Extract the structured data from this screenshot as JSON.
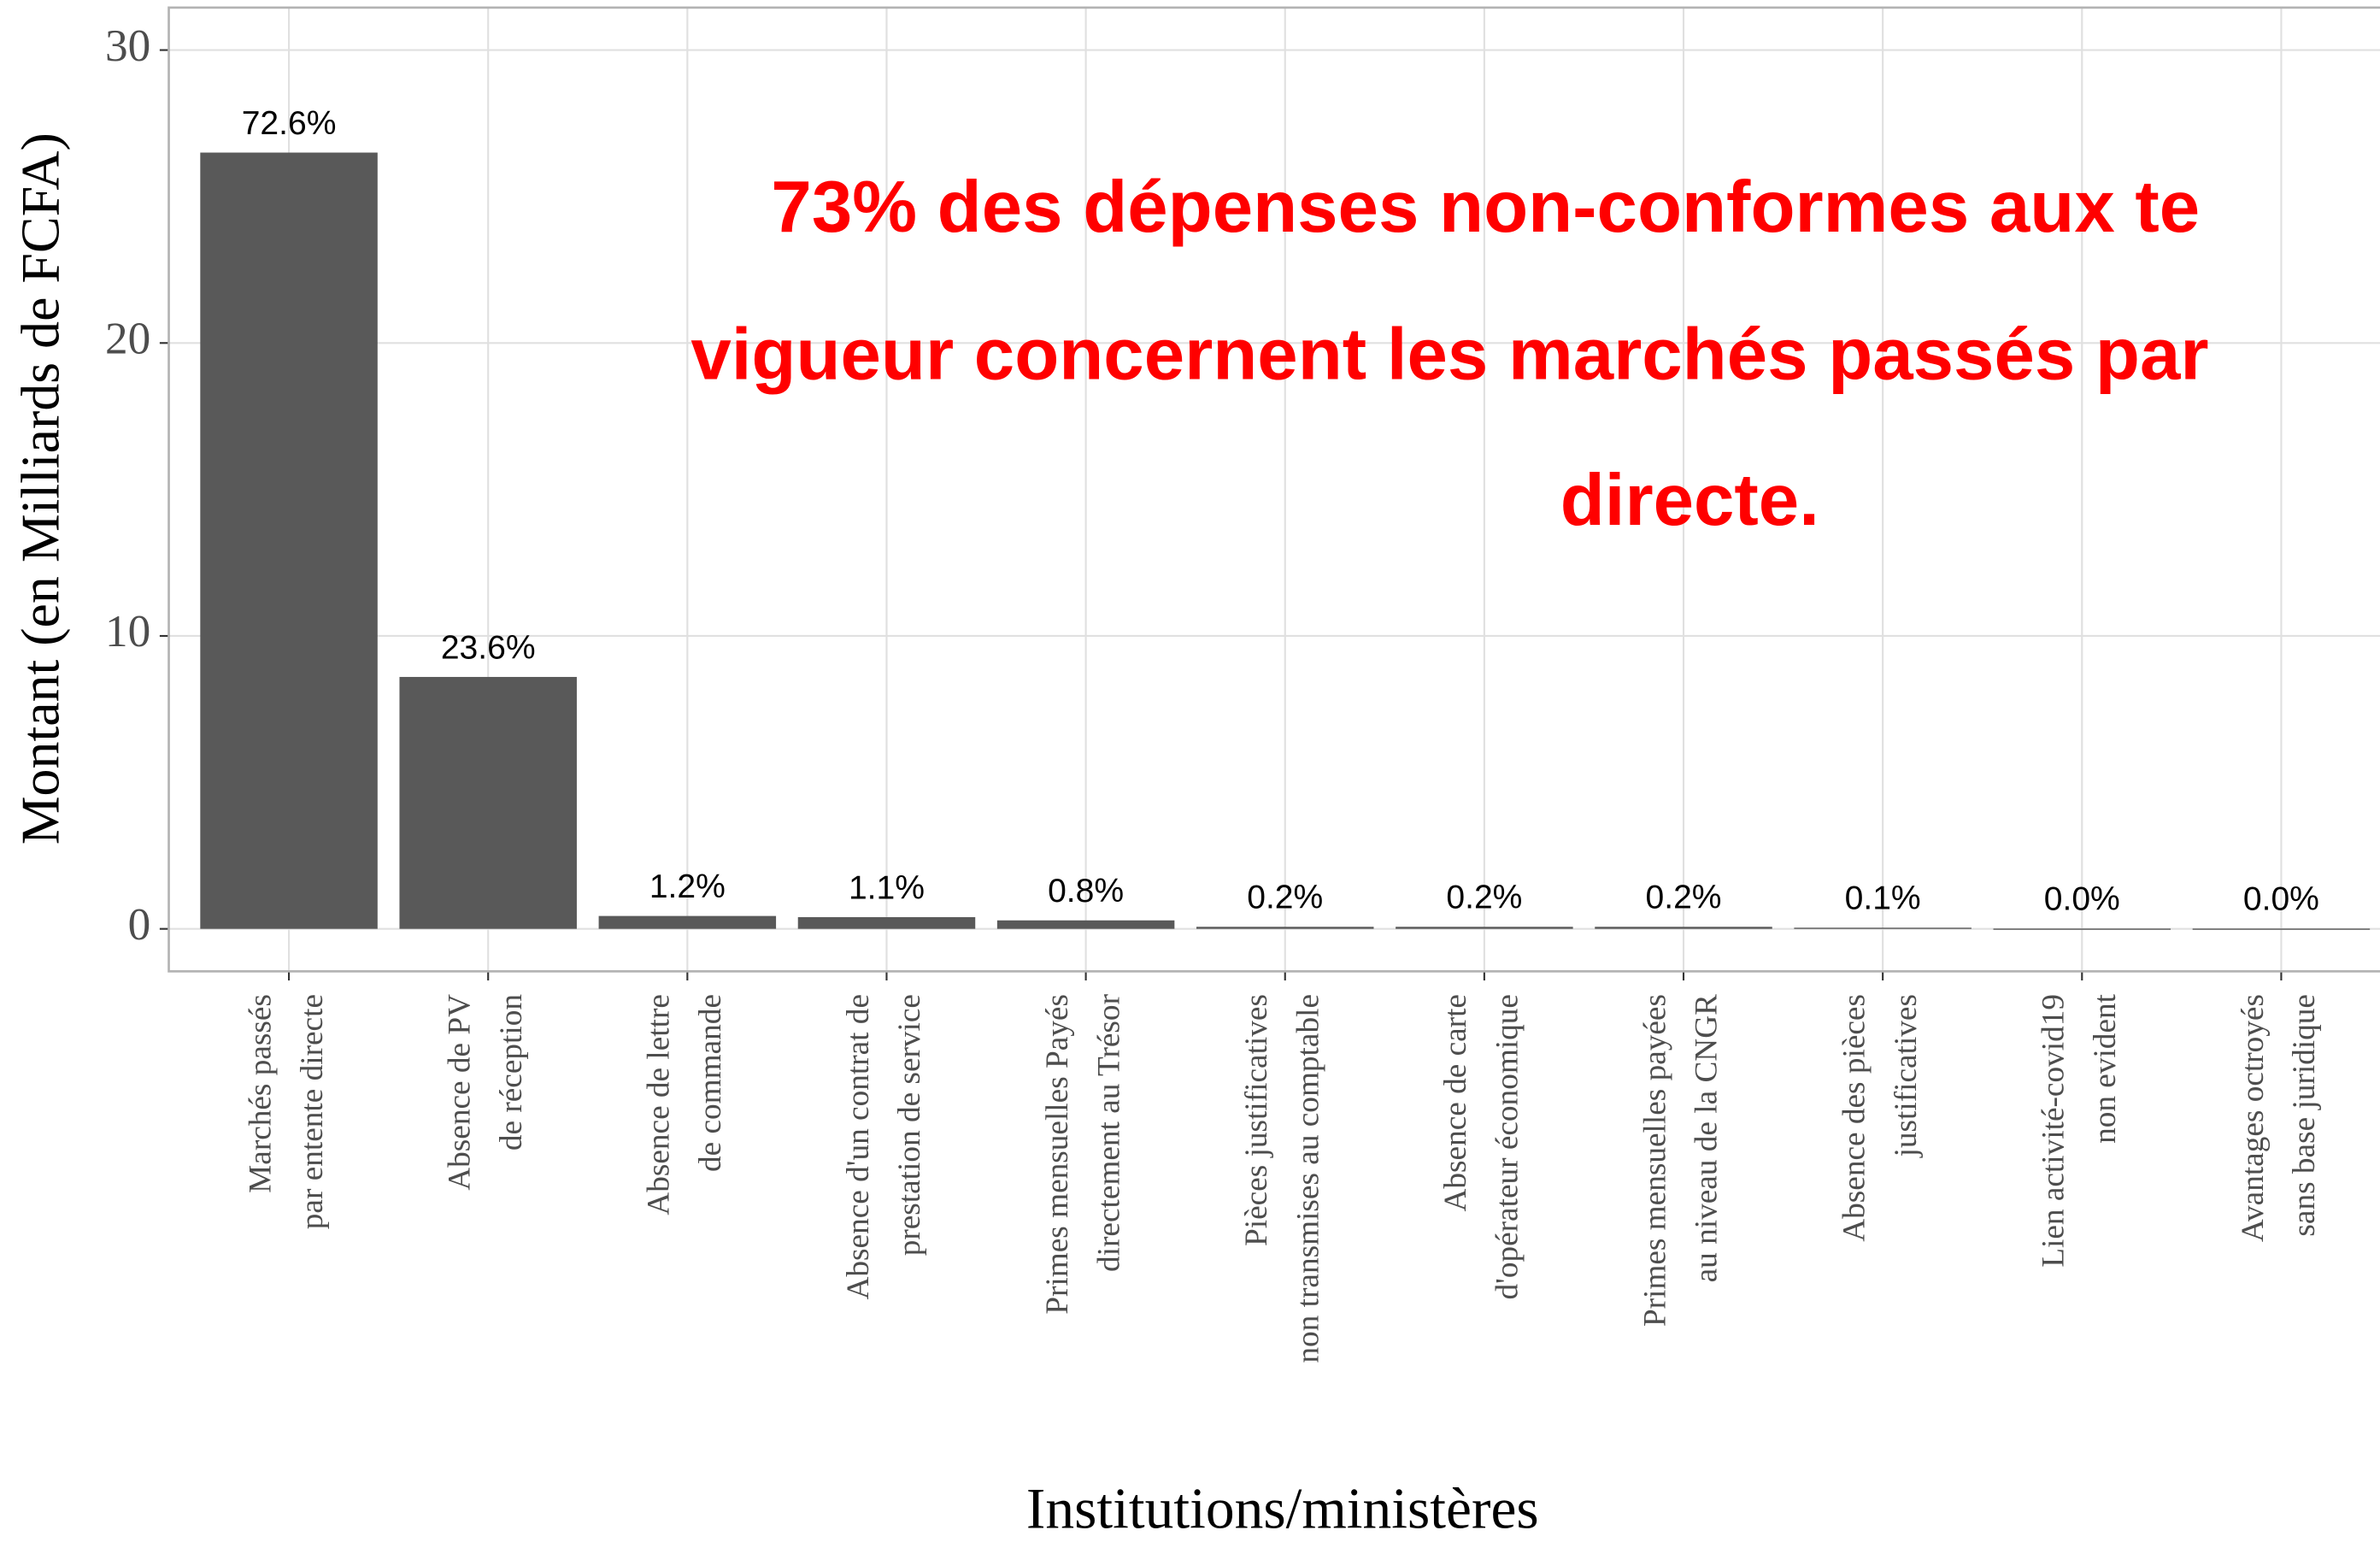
{
  "chart_data": {
    "type": "bar",
    "xlabel": "Institutions/ministères",
    "ylabel": "Montant (en Milliards de FCFA)",
    "annotation": [
      "73% des dépenses non-conformes aux te",
      "vigueur concernent les marchés passés par",
      "directe."
    ],
    "categories": [
      [
        "Marchés passés",
        "par entente directe"
      ],
      [
        "Absence de PV",
        "de réception"
      ],
      [
        "Absence de lettre",
        "de commande"
      ],
      [
        "Absence d'un contrat de",
        "prestation de service"
      ],
      [
        "Primes mensuelles Payés",
        "directement au Trésor"
      ],
      [
        "Pièces justificatives",
        "non transmises au comptable"
      ],
      [
        "Absence de carte",
        "d'opérateur économique"
      ],
      [
        "Primes mensuelles payées",
        "au niveau de la CNGR"
      ],
      [
        "Absence des pièces",
        "justificatives"
      ],
      [
        "Lien activité-covid19",
        "non evident"
      ],
      [
        "Avantages octroyés",
        "sans base juridique"
      ]
    ],
    "values": [
      26.5,
      8.6,
      0.44,
      0.4,
      0.29,
      0.07,
      0.07,
      0.07,
      0.04,
      0.01,
      0.01
    ],
    "value_labels": [
      "72.6%",
      "23.6%",
      "1.2%",
      "1.1%",
      "0.8%",
      "0.2%",
      "0.2%",
      "0.2%",
      "0.1%",
      "0.0%",
      "0.0%"
    ],
    "color": "#595959",
    "annotation_color": "#ff0000",
    "ylim": [
      -1.45,
      31.45
    ],
    "yticks": [
      0,
      10,
      20,
      30
    ],
    "grid": true
  }
}
